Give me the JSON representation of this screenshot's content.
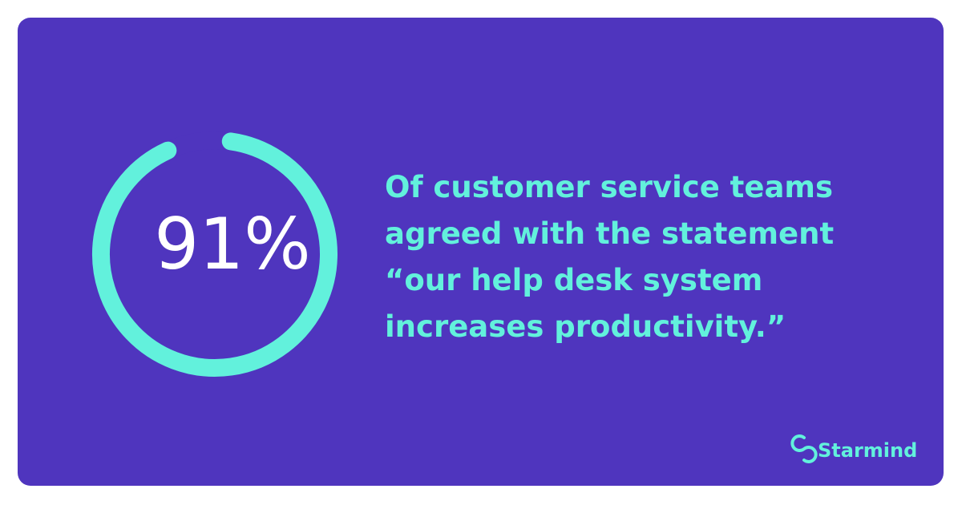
{
  "stat": {
    "value": 91,
    "label": "91%"
  },
  "statement": {
    "lines": [
      "Of customer service teams",
      "agreed with the statement",
      "“our help desk system",
      "increases productivity.”"
    ]
  },
  "brand": {
    "name": "Starmind"
  }
}
